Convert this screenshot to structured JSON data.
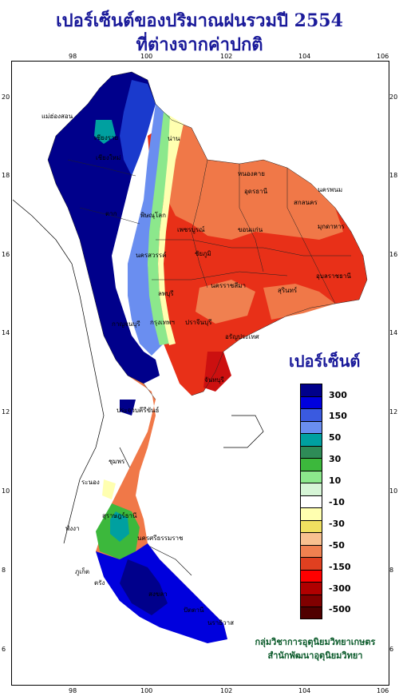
{
  "title": {
    "line1": "เปอร์เซ็นต์ของปริมาณฝนรวมปี 2554",
    "line2": "ที่ต่างจากค่าปกติ"
  },
  "axes": {
    "lon_ticks": [
      "98",
      "100",
      "102",
      "104",
      "106"
    ],
    "lat_ticks": [
      "20",
      "18",
      "16",
      "14",
      "12",
      "10",
      "8",
      "6"
    ]
  },
  "legend": {
    "title": "เปอร์เซ็นต์",
    "colors": [
      "#00008b",
      "#0000dd",
      "#3a5ae0",
      "#6a8ef0",
      "#00a0a0",
      "#2e8b57",
      "#3cb83c",
      "#8ce88c",
      "#d6f5d6",
      "#ffffff",
      "#ffffb0",
      "#f0e060",
      "#f8c090",
      "#f08050",
      "#e04020",
      "#ff0000",
      "#b00000",
      "#800000",
      "#500000"
    ],
    "labels": [
      "300",
      "150",
      "50",
      "30",
      "10",
      "-10",
      "-30",
      "-50",
      "-150",
      "-300",
      "-500"
    ]
  },
  "cities": [
    "เชียงราย",
    "เชียงใหม่",
    "แม่ฮ่องสอน",
    "น่าน",
    "ตาก",
    "หนองคาย",
    "อุดรธานี",
    "สกลนคร",
    "นครพนม",
    "เพชรบูรณ์",
    "ขอนแก่น",
    "มุกดาหาร",
    "พิษณุโลก",
    "นครสวรรค์",
    "ชัยภูมิ",
    "ลพบุรี",
    "นครราชสีมา",
    "อุบลราชธานี",
    "สุรินทร์",
    "กาญจนบุรี",
    "กรุงเทพฯ",
    "ปราจีนบุรี",
    "อรัญประเทศ",
    "จันทบุรี",
    "ประจวบคีรีขันธ์",
    "ชุมพร",
    "ระนอง",
    "สุราษฎร์ธานี",
    "นครศรีธรรมราช",
    "ภูเก็ต",
    "พังงา",
    "ตรัง",
    "สงขลา",
    "ปัตตานี",
    "นราธิวาส"
  ],
  "credit": {
    "line1": "กลุ่มวิชาการอุตุนิยมวิทยาเกษตร",
    "line2": "สำนักพัฒนาอุตุนิยมวิทยา"
  }
}
